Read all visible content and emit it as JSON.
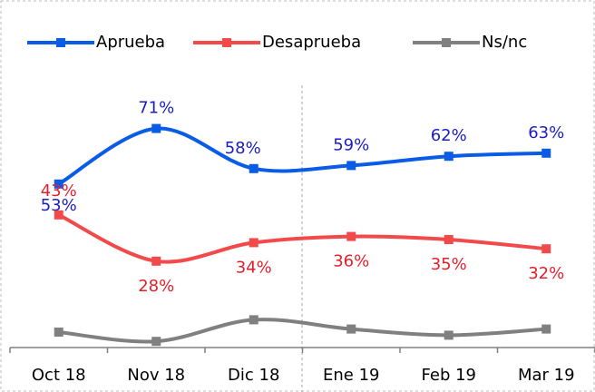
{
  "chart_data": {
    "type": "line",
    "categories": [
      "Oct 18",
      "Nov 18",
      "Dic 18",
      "Ene 19",
      "Feb 19",
      "Mar 19"
    ],
    "series": [
      {
        "name": "Aprueba",
        "color": "#0a5ce6",
        "label_color": "#1c1cc4",
        "values": [
          53,
          71,
          58,
          59,
          62,
          63
        ],
        "value_labels": [
          "53%",
          "71%",
          "58%",
          "59%",
          "62%",
          "63%"
        ]
      },
      {
        "name": "Desaprueba",
        "color": "#f24a4a",
        "label_color": "#e51f2a",
        "values": [
          43,
          28,
          34,
          36,
          35,
          32
        ],
        "value_labels": [
          "43%",
          "28%",
          "34%",
          "36%",
          "35%",
          "32%"
        ]
      },
      {
        "name": "Ns/nc",
        "color": "#808080",
        "values": [
          5,
          2,
          9,
          6,
          4,
          6
        ]
      }
    ],
    "ylim": [
      0,
      80
    ],
    "legend": "top"
  }
}
